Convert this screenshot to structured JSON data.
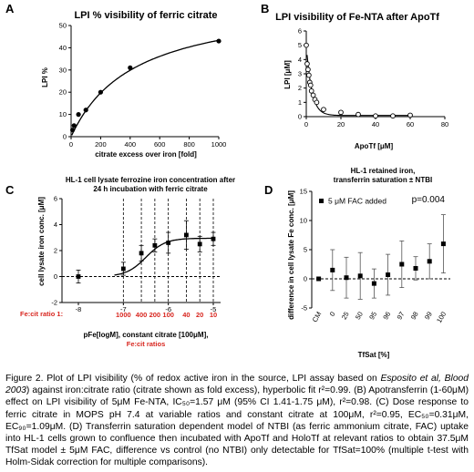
{
  "chart_data": [
    {
      "panel": "A",
      "type": "scatter",
      "title": "LPI % visibility of ferric citrate",
      "xlabel": "citrate excess over iron [fold]",
      "ylabel": "LPI %",
      "xlim": [
        0,
        1000
      ],
      "ylim": [
        0,
        50
      ],
      "xticks": [
        "0",
        "200",
        "400",
        "600",
        "800",
        "1000"
      ],
      "yticks": [
        "0",
        "10",
        "20",
        "30",
        "40",
        "50"
      ],
      "points": [
        {
          "x": 10,
          "y": 3
        },
        {
          "x": 20,
          "y": 5
        },
        {
          "x": 50,
          "y": 10
        },
        {
          "x": 100,
          "y": 12
        },
        {
          "x": 200,
          "y": 20
        },
        {
          "x": 400,
          "y": 31
        },
        {
          "x": 1000,
          "y": 43
        }
      ],
      "fit": {
        "type": "hyperbolic",
        "bmax": 62,
        "kd": 430
      }
    },
    {
      "panel": "B",
      "type": "scatter",
      "title": "LPI visibility of Fe-NTA after ApoTf",
      "xlabel": "ApoTf [μM]",
      "ylabel": "LPI [μM]",
      "xlim": [
        0,
        80
      ],
      "ylim": [
        0,
        6
      ],
      "xticks": [
        "0",
        "20",
        "40",
        "60",
        "80"
      ],
      "yticks": [
        "0",
        "1",
        "2",
        "3",
        "4",
        "5",
        "6"
      ],
      "points": [
        {
          "x": 0,
          "y": 5.0
        },
        {
          "x": 0.5,
          "y": 3.7
        },
        {
          "x": 1,
          "y": 3.3
        },
        {
          "x": 1.5,
          "y": 2.9
        },
        {
          "x": 2,
          "y": 2.4
        },
        {
          "x": 2.5,
          "y": 2.2
        },
        {
          "x": 3,
          "y": 1.8
        },
        {
          "x": 4,
          "y": 1.5
        },
        {
          "x": 5,
          "y": 1.2
        },
        {
          "x": 6,
          "y": 1.0
        },
        {
          "x": 10,
          "y": 0.5
        },
        {
          "x": 20,
          "y": 0.3
        },
        {
          "x": 30,
          "y": 0.15
        },
        {
          "x": 40,
          "y": 0.05
        },
        {
          "x": 50,
          "y": 0.05
        },
        {
          "x": 60,
          "y": 0.1
        }
      ],
      "fit_decay": {
        "plateau": 0.08,
        "span": 5.0,
        "k": 0.33
      }
    },
    {
      "panel": "C",
      "type": "scatter",
      "title_lines": [
        "HL-1 cell lysate ferrozine iron concentration after",
        "24 h incubation with ferric citrate"
      ],
      "xlabel": "pFe[logM], constant citrate [100μM],",
      "xlabel2": "Fe:cit ratios",
      "ylabel": "cell lysate iron conc. [μM]",
      "xlim": [
        -8,
        -5
      ],
      "ylim": [
        -2,
        6
      ],
      "xticks": [
        "-8",
        "-7",
        "-6",
        "-5"
      ],
      "yticks": [
        "-2",
        "0",
        "2",
        "4",
        "6"
      ],
      "ratio_label": "Fe:cit ratio 1:",
      "ratio_ticks": [
        {
          "x": -7,
          "label": "1000"
        },
        {
          "x": -6.6,
          "label": "400"
        },
        {
          "x": -6.3,
          "label": "200"
        },
        {
          "x": -6,
          "label": "100"
        },
        {
          "x": -5.6,
          "label": "40"
        },
        {
          "x": -5.3,
          "label": "20"
        },
        {
          "x": -5,
          "label": "10"
        }
      ],
      "points": [
        {
          "x": -8,
          "y": 0.0,
          "err": 0.5
        },
        {
          "x": -7,
          "y": 0.6,
          "err": 0.5
        },
        {
          "x": -6.6,
          "y": 1.8,
          "err": 0.6
        },
        {
          "x": -6.3,
          "y": 2.4,
          "err": 0.5
        },
        {
          "x": -6,
          "y": 2.6,
          "err": 0.8
        },
        {
          "x": -5.6,
          "y": 3.2,
          "err": 1.1
        },
        {
          "x": -5.3,
          "y": 2.5,
          "err": 0.6
        },
        {
          "x": -5,
          "y": 2.9,
          "err": 0.5
        }
      ],
      "fit_sigmoid": {
        "bottom": 0,
        "top": 2.95,
        "logec50": -6.5,
        "hill": 2.0
      }
    },
    {
      "panel": "D",
      "type": "scatter",
      "title_lines": [
        "HL-1 retained iron,",
        "transferrin saturation ± NTBI"
      ],
      "xlabel": "TfSat [%]",
      "ylabel": "difference in cell lysate Fe conc. [μM]",
      "ylim": [
        -5,
        15
      ],
      "yticks": [
        "-5",
        "0",
        "5",
        "10",
        "15"
      ],
      "categories": [
        "CM",
        "0",
        "25",
        "50",
        "95",
        "96",
        "97",
        "98",
        "99",
        "100"
      ],
      "values": [
        0,
        1.5,
        0.2,
        0.5,
        -0.8,
        0.7,
        2.5,
        1.8,
        3.0,
        6.0
      ],
      "errors": [
        0,
        3.5,
        3.5,
        4.0,
        2.5,
        3.5,
        4.0,
        2.0,
        3.0,
        5.0
      ],
      "legend": "5 μM FAC added",
      "legend_position": "top-left",
      "annotation": "p=0.004"
    }
  ],
  "panel_labels": [
    "A",
    "B",
    "C",
    "D"
  ],
  "caption": {
    "p1": "Figure 2. Plot of LPI visibility (% of redox active iron in the source, LPI assay based on ",
    "p2": "Esposito et al, Blood 2003",
    "p3": ") against iron:citrate ratio (citrate shown as fold excess), hyperbolic fit r²=0.99. (B) Apotransferrin (1-60μM) effect on LPI visibility of 5μM Fe-NTA, IC₅₀=1.57 μM (95% CI 1.41-1.75 μM), r²=0.98. (C) Dose response to ferric citrate in MOPS pH 7.4 at variable ratios and constant citrate at 100μM, r²=0.95, EC₅₀=0.31μM, EC₉₀=1.09μM. (D) Transferrin saturation dependent model of NTBI (as ferric ammonium citrate, FAC) uptake into HL-1 cells grown to confluence then incubated with ApoTf and HoloTf at relevant ratios to obtain 37.5μM TfSat model ± 5μM FAC, difference vs control (no NTBI) only detectable for TfSat=100% (multiple t-test with Holm-Sidak correction for multiple comparisons)."
  }
}
